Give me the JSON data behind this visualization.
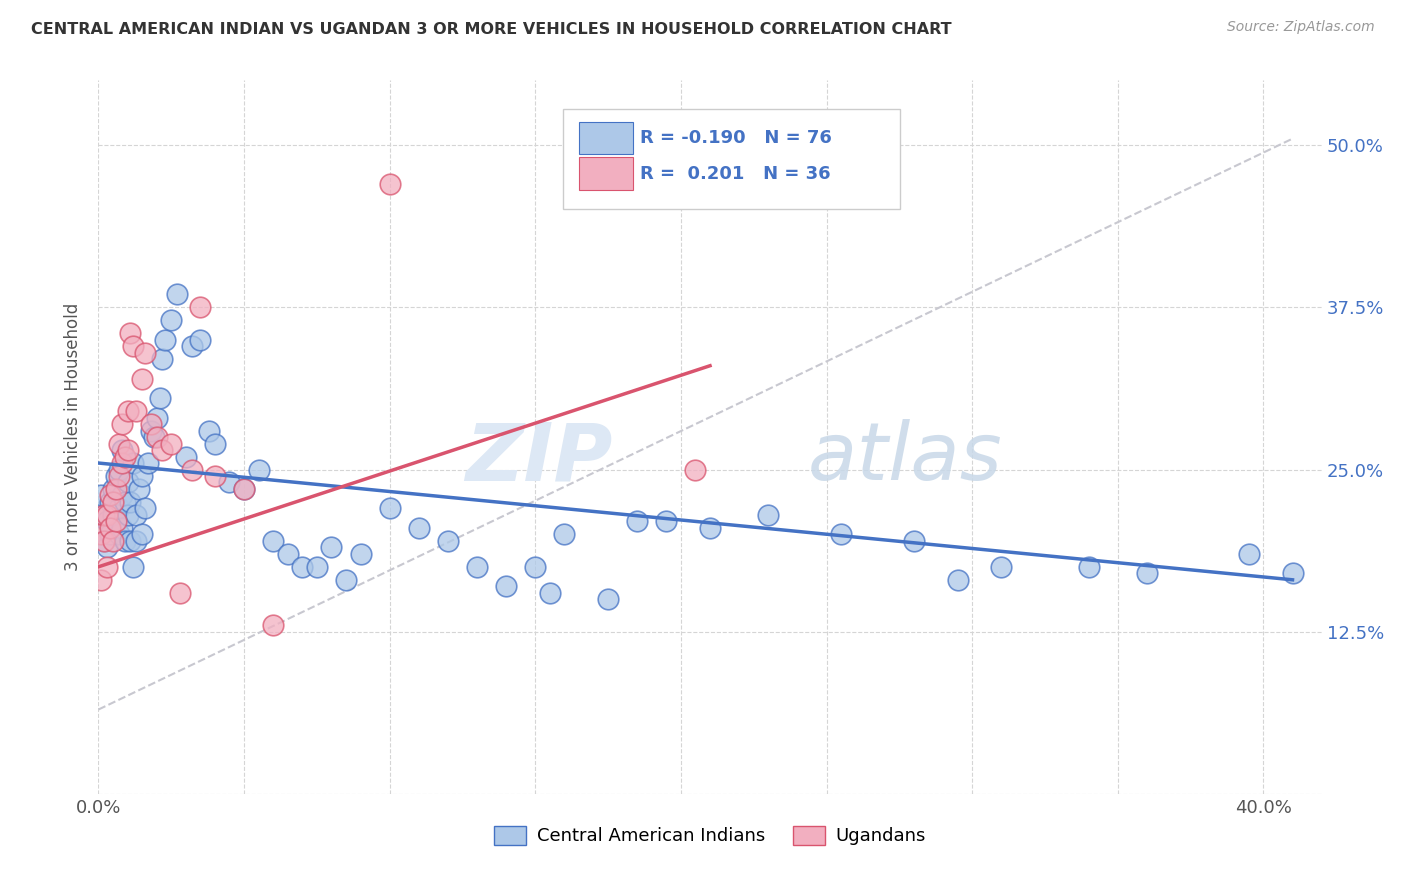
{
  "title": "CENTRAL AMERICAN INDIAN VS UGANDAN 3 OR MORE VEHICLES IN HOUSEHOLD CORRELATION CHART",
  "source": "Source: ZipAtlas.com",
  "ylabel": "3 or more Vehicles in Household",
  "xlim": [
    0.0,
    0.42
  ],
  "ylim": [
    0.0,
    0.55
  ],
  "x_tick_positions": [
    0.0,
    0.05,
    0.1,
    0.15,
    0.2,
    0.25,
    0.3,
    0.35,
    0.4
  ],
  "x_tick_labels": [
    "0.0%",
    "",
    "",
    "",
    "",
    "",
    "",
    "",
    "40.0%"
  ],
  "y_tick_positions": [
    0.0,
    0.125,
    0.25,
    0.375,
    0.5
  ],
  "y_tick_labels_right": [
    "",
    "12.5%",
    "25.0%",
    "37.5%",
    "50.0%"
  ],
  "legend_blue_label": "Central American Indians",
  "legend_pink_label": "Ugandans",
  "blue_color": "#adc8e8",
  "pink_color": "#f2afc0",
  "blue_line_color": "#4472c4",
  "pink_line_color": "#d9546e",
  "blue_r_text": "R = -0.190",
  "blue_n_text": "N = 76",
  "pink_r_text": "R =  0.201",
  "pink_n_text": "N = 36",
  "watermark_zip": "ZIP",
  "watermark_atlas": "atlas",
  "blue_line": [
    0.0,
    0.255,
    0.41,
    0.165
  ],
  "pink_line": [
    0.0,
    0.175,
    0.21,
    0.33
  ],
  "dash_line": [
    0.0,
    0.065,
    0.41,
    0.505
  ],
  "blue_scatter_x": [
    0.001,
    0.002,
    0.002,
    0.003,
    0.003,
    0.004,
    0.004,
    0.005,
    0.005,
    0.006,
    0.006,
    0.007,
    0.007,
    0.007,
    0.008,
    0.008,
    0.008,
    0.009,
    0.009,
    0.01,
    0.01,
    0.011,
    0.011,
    0.012,
    0.012,
    0.013,
    0.013,
    0.014,
    0.015,
    0.015,
    0.016,
    0.017,
    0.018,
    0.019,
    0.02,
    0.021,
    0.022,
    0.023,
    0.025,
    0.027,
    0.03,
    0.032,
    0.035,
    0.038,
    0.04,
    0.045,
    0.05,
    0.055,
    0.06,
    0.065,
    0.07,
    0.075,
    0.08,
    0.085,
    0.09,
    0.1,
    0.11,
    0.12,
    0.13,
    0.14,
    0.15,
    0.155,
    0.16,
    0.175,
    0.185,
    0.195,
    0.21,
    0.23,
    0.255,
    0.28,
    0.295,
    0.31,
    0.34,
    0.36,
    0.395,
    0.41
  ],
  "blue_scatter_y": [
    0.23,
    0.215,
    0.195,
    0.19,
    0.21,
    0.2,
    0.225,
    0.215,
    0.235,
    0.245,
    0.21,
    0.2,
    0.22,
    0.25,
    0.205,
    0.23,
    0.265,
    0.225,
    0.195,
    0.215,
    0.24,
    0.195,
    0.225,
    0.175,
    0.255,
    0.195,
    0.215,
    0.235,
    0.2,
    0.245,
    0.22,
    0.255,
    0.28,
    0.275,
    0.29,
    0.305,
    0.335,
    0.35,
    0.365,
    0.385,
    0.26,
    0.345,
    0.35,
    0.28,
    0.27,
    0.24,
    0.235,
    0.25,
    0.195,
    0.185,
    0.175,
    0.175,
    0.19,
    0.165,
    0.185,
    0.22,
    0.205,
    0.195,
    0.175,
    0.16,
    0.175,
    0.155,
    0.2,
    0.15,
    0.21,
    0.21,
    0.205,
    0.215,
    0.2,
    0.195,
    0.165,
    0.175,
    0.175,
    0.17,
    0.185,
    0.17
  ],
  "pink_scatter_x": [
    0.001,
    0.001,
    0.002,
    0.002,
    0.003,
    0.003,
    0.004,
    0.004,
    0.005,
    0.005,
    0.006,
    0.006,
    0.007,
    0.007,
    0.008,
    0.008,
    0.009,
    0.01,
    0.01,
    0.011,
    0.012,
    0.013,
    0.015,
    0.016,
    0.018,
    0.02,
    0.022,
    0.025,
    0.028,
    0.032,
    0.035,
    0.04,
    0.05,
    0.06,
    0.1,
    0.205
  ],
  "pink_scatter_y": [
    0.165,
    0.2,
    0.195,
    0.215,
    0.175,
    0.215,
    0.205,
    0.23,
    0.195,
    0.225,
    0.21,
    0.235,
    0.245,
    0.27,
    0.255,
    0.285,
    0.26,
    0.265,
    0.295,
    0.355,
    0.345,
    0.295,
    0.32,
    0.34,
    0.285,
    0.275,
    0.265,
    0.27,
    0.155,
    0.25,
    0.375,
    0.245,
    0.235,
    0.13,
    0.47,
    0.25
  ]
}
